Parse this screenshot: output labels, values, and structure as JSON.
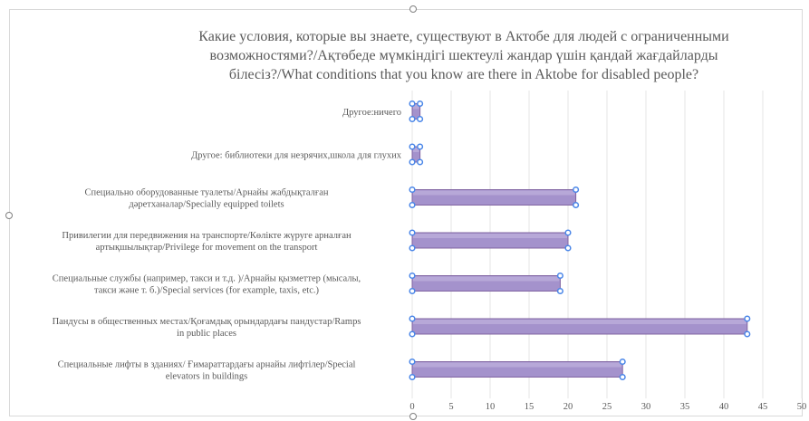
{
  "chart_data": {
    "type": "bar",
    "orientation": "horizontal",
    "title": "Какие условия, которые вы знаете, существуют в Актобе для людей с ограниченными возможностями?/Ақтөбеде мүмкіндігі шектеулі жандар үшін қандай жағдайларды білесіз?/What conditions that you know are there in Aktobe for disabled people?",
    "title_lines": [
      "Какие условия, которые вы знаете, существуют в Актобе для людей с ограниченными",
      "возможностями?/Ақтөбеде мүмкіндігі шектеулі жандар үшін қандай жағдайларды",
      "білесіз?/What conditions that you know are there in Aktobe for disabled people?"
    ],
    "categories": [
      {
        "lines": [
          "Другое:ничего"
        ]
      },
      {
        "lines": [
          "Другое: библиотеки для незрячих,школа для глухих"
        ]
      },
      {
        "lines": [
          "Специально оборудованные туалеты/Арнайы жабдықталған",
          "дәретханалар/Specially equipped toilets"
        ]
      },
      {
        "lines": [
          "Привилегии для передвижения на транспорте/Көлікте жүруге арналған",
          "артықшылықтар/Privilege for movement on the transport"
        ]
      },
      {
        "lines": [
          "Специальные службы (например, такси и т.д. )/Арнайы қызметтер (мысалы,",
          "такси және т. б.)/Special services (for example, taxis, etc.)"
        ]
      },
      {
        "lines": [
          "Пандусы в общественных местах/Қоғамдық орындардағы пандустар/Ramps",
          "in public places"
        ]
      },
      {
        "lines": [
          "Специальные лифты в зданиях/ Ғимараттардағы арнайы лифтілер/Special",
          "elevators in buildings"
        ]
      }
    ],
    "values": [
      1,
      1,
      21,
      20,
      19,
      43,
      27
    ],
    "xlim": [
      0,
      50
    ],
    "x_ticks": [
      "0",
      "5",
      "10",
      "15",
      "20",
      "25",
      "30",
      "35",
      "40",
      "45",
      "50"
    ],
    "grid": true,
    "legend": "none",
    "colors": {
      "bar_fill": "#a492cc",
      "bar_stroke": "#8064a2",
      "text": "#595959",
      "grid": "#e6e6e6",
      "handle": "#4a86e8"
    }
  }
}
